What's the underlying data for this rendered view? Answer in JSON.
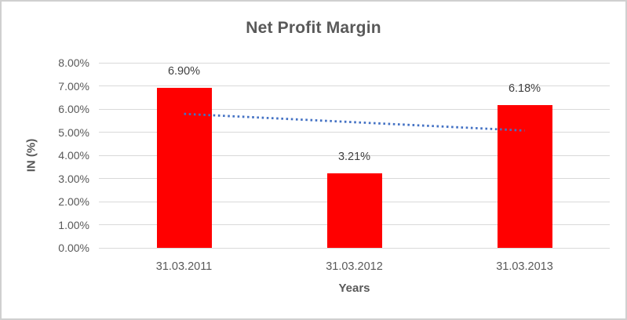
{
  "window": {
    "background": "#ffffff",
    "border_color": "#d0d0d0"
  },
  "chart_data": {
    "type": "bar",
    "title": "Net Profit Margin",
    "xlabel": "Years",
    "ylabel": "IN (%)",
    "categories": [
      "31.03.2011",
      "31.03.2012",
      "31.03.2013"
    ],
    "values": [
      6.9,
      3.21,
      6.18
    ],
    "data_labels": [
      "6.90%",
      "3.21%",
      "6.18%"
    ],
    "ylim": [
      0,
      8
    ],
    "ytick_labels": [
      "0.00%",
      "1.00%",
      "2.00%",
      "3.00%",
      "4.00%",
      "5.00%",
      "6.00%",
      "7.00%",
      "8.00%"
    ],
    "grid": true,
    "legend_position": "none",
    "bar_color": "#ff0000",
    "trendline": {
      "type": "linear",
      "style": "dotted",
      "color": "#4472c4",
      "start_value": 5.79,
      "end_value": 5.07
    },
    "colors": {
      "title": "#595959",
      "axis_title": "#595959",
      "tick_label": "#595959",
      "data_label": "#404040",
      "gridline": "#d9d9d9"
    }
  }
}
